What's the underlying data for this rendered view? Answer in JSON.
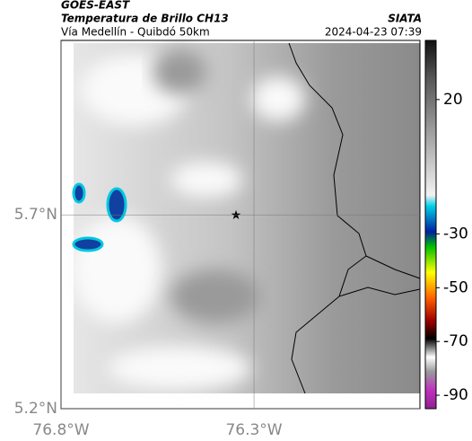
{
  "header": {
    "title": "GOES-EAST",
    "subtitle": "Temperatura de Brillo CH13",
    "route": "Vía Medellín - Quibdó 50km",
    "source": "SIATA",
    "datetime": "2024-04-23 07:39"
  },
  "chart_data": {
    "type": "map",
    "xlim": [
      -76.8,
      -75.87
    ],
    "ylim": [
      5.2,
      6.15
    ],
    "xticks": [
      {
        "value": -76.8,
        "label": "76.8°W"
      },
      {
        "value": -76.3,
        "label": "76.3°W"
      }
    ],
    "yticks": [
      {
        "value": 5.2,
        "label": "5.2°N"
      },
      {
        "value": 5.7,
        "label": "5.7°N"
      }
    ],
    "grid": true,
    "clim": [
      -95,
      42
    ],
    "cticks": [
      20,
      -30,
      -50,
      -70,
      -90
    ]
  }
}
